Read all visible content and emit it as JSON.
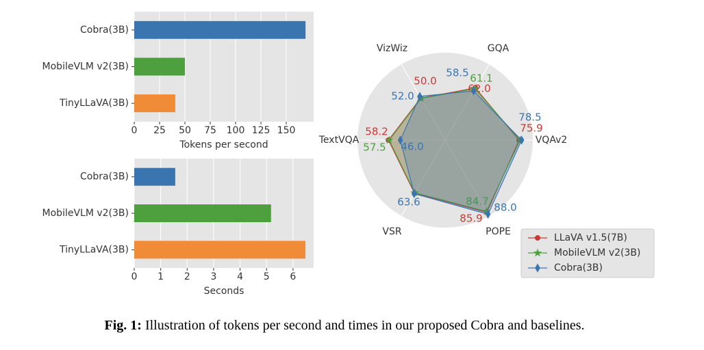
{
  "chart_data": [
    {
      "type": "bar",
      "orientation": "horizontal",
      "categories": [
        "Cobra(3B)",
        "MobileVLM v2(3B)",
        "TinyLLaVA(3B)"
      ],
      "values": [
        169,
        50,
        40.5
      ],
      "colors": [
        "#3a75b0",
        "#4ea03f",
        "#f08b37"
      ],
      "xlim": [
        0,
        177
      ],
      "xticks": [
        0,
        25,
        50,
        75,
        100,
        125,
        150
      ],
      "xlabel": "Tokens per second",
      "grid": true
    },
    {
      "type": "bar",
      "orientation": "horizontal",
      "categories": [
        "Cobra(3B)",
        "MobileVLM v2(3B)",
        "TinyLLaVA(3B)"
      ],
      "values": [
        1.55,
        5.17,
        6.47
      ],
      "colors": [
        "#3a75b0",
        "#4ea03f",
        "#f08b37"
      ],
      "xlim": [
        0,
        6.78
      ],
      "xticks": [
        0,
        1,
        2,
        3,
        4,
        5,
        6
      ],
      "xlabel": "Seconds",
      "grid": true
    },
    {
      "type": "radar",
      "axes": [
        "VQAv2",
        "GQA",
        "VizWiz",
        "TextVQA",
        "VSR",
        "POPE"
      ],
      "rlim": [
        0,
        90
      ],
      "series": [
        {
          "name": "LLaVA v1.5(7B)",
          "color": "#c83a33",
          "marker": "circle",
          "values": [
            75.9,
            62.0,
            50.0,
            58.2,
            63.0,
            85.9
          ],
          "value_labels": [
            "75.9",
            "62.0",
            "50.0",
            "58.2",
            null,
            "85.9"
          ]
        },
        {
          "name": "MobileVLM v2(3B)",
          "color": "#4ea03f",
          "marker": "star",
          "values": [
            77.0,
            61.1,
            49.5,
            57.5,
            62.5,
            84.7
          ],
          "value_labels": [
            null,
            "61.1",
            null,
            "57.5",
            null,
            "84.7"
          ]
        },
        {
          "name": "Cobra(3B)",
          "color": "#3a75b0",
          "marker": "diamond",
          "values": [
            78.5,
            58.5,
            52.0,
            46.0,
            63.6,
            88.0
          ],
          "value_labels": [
            "78.5",
            "58.5",
            "52.0",
            "46.0",
            "63.6",
            "88.0"
          ]
        }
      ],
      "legend": "lower right"
    }
  ],
  "caption": {
    "label": "Fig. 1:",
    "text": "Illustration of tokens per second and times in our proposed Cobra and baselines."
  }
}
